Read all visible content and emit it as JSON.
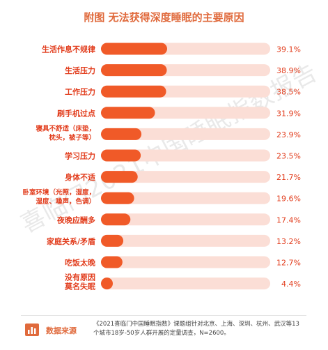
{
  "watermark": "喜临门2021中国睡眠指数报告",
  "footer": {
    "label": "数据来源",
    "text": "《2021喜临门中国睡眠指数》课题组针对北京、上海、深圳、杭州、武汉等13个城市18岁-50岁人群开展的定量调查，N=2600。"
  },
  "colors": {
    "bar": "#f05a28",
    "track": "#fbded6",
    "title": "#e06a3c",
    "label": "#e23d1d"
  },
  "chart_data": {
    "type": "bar",
    "orientation": "horizontal",
    "title": "附图 无法获得深度睡眠的主要原因",
    "unit": "%",
    "xlim": [
      0,
      100
    ],
    "categories": [
      [
        "生活作息不规律"
      ],
      [
        "生活压力"
      ],
      [
        "工作压力"
      ],
      [
        "刷手机过点"
      ],
      [
        "寝具不舒适（床垫，",
        "枕头，被子等）"
      ],
      [
        "学习压力"
      ],
      [
        "身体不适"
      ],
      [
        "卧室环境（光照，湿度，",
        "湿度、噪声，色调）"
      ],
      [
        "夜晚应酬多"
      ],
      [
        "家庭关系/矛盾"
      ],
      [
        "吃饭太晚"
      ],
      [
        "没有原因",
        "莫名失眠"
      ]
    ],
    "values": [
      39.1,
      38.9,
      38.5,
      31.9,
      23.9,
      23.5,
      21.7,
      19.6,
      17.4,
      13.2,
      12.7,
      4.4
    ],
    "value_labels": [
      "39.1%",
      "38.9%",
      "38.5%",
      "31.9%",
      "23.9%",
      "23.5%",
      "21.7%",
      "19.6%",
      "17.4%",
      "13.2%",
      "12.7%",
      "4.4%"
    ]
  }
}
